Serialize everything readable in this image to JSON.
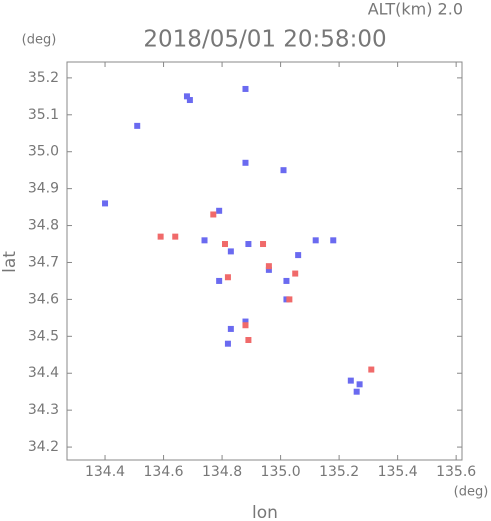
{
  "chart_data": {
    "type": "scatter",
    "header": "ALT(km) 2.0",
    "title": "2018/05/01 20:58:00",
    "y_unit": "(deg)",
    "x_unit": "(deg)",
    "x_label": "lon",
    "y_label": "lat",
    "xlim": [
      134.27,
      135.62
    ],
    "ylim": [
      34.165,
      35.243
    ],
    "xticks": [
      134.4,
      134.6,
      134.8,
      {
        "value": 135.0,
        "label": "135.0"
      },
      135.2,
      135.4,
      135.6
    ],
    "yticks": [
      34.2,
      34.3,
      34.4,
      34.5,
      34.6,
      34.7,
      34.8,
      34.9,
      {
        "value": 35.0,
        "label": "35.0"
      },
      35.1,
      35.2
    ],
    "series": [
      {
        "color": "#6a6af0",
        "x": [
          134.51,
          134.69,
          134.68,
          134.88,
          135.01,
          134.88,
          134.4,
          134.79,
          134.74,
          134.83,
          134.89,
          134.96,
          135.02,
          135.06,
          135.12,
          135.18,
          134.83,
          134.88,
          134.82,
          135.27,
          135.26,
          135.24,
          135.02,
          134.79
        ],
        "values": [
          35.07,
          35.14,
          35.15,
          35.17,
          34.95,
          34.97,
          34.86,
          34.84,
          34.76,
          34.73,
          34.75,
          34.68,
          34.65,
          34.72,
          34.76,
          34.76,
          34.52,
          34.54,
          34.48,
          34.37,
          34.35,
          34.38,
          34.6,
          34.65
        ]
      },
      {
        "color": "#f06a6a",
        "x": [
          134.59,
          134.64,
          134.77,
          134.81,
          134.94,
          134.96,
          135.03,
          135.05,
          134.88,
          134.89,
          134.82,
          135.31
        ],
        "values": [
          34.77,
          34.77,
          34.83,
          34.75,
          34.75,
          34.69,
          34.6,
          34.67,
          34.53,
          34.49,
          34.66,
          34.41
        ]
      }
    ]
  }
}
